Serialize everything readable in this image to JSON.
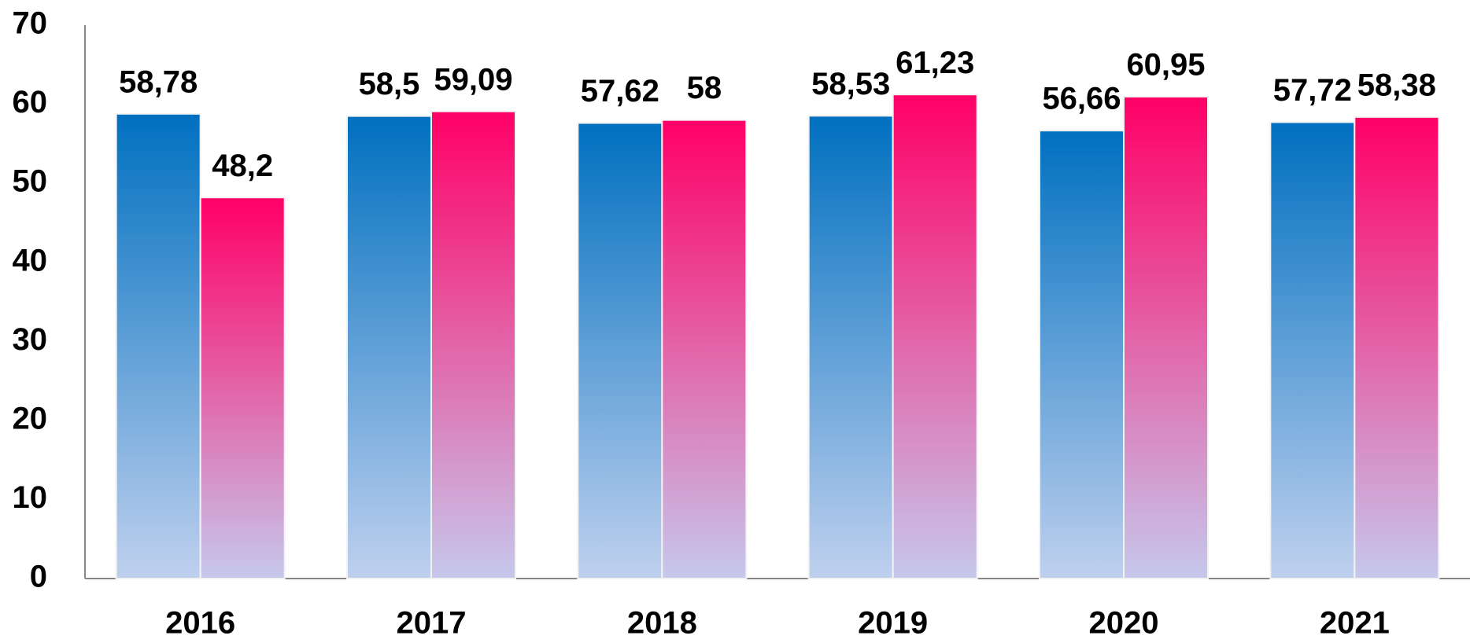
{
  "chart_data": {
    "type": "bar",
    "categories": [
      "2016",
      "2017",
      "2018",
      "2019",
      "2020",
      "2021"
    ],
    "series": [
      {
        "color": "#0070c0",
        "values": [
          58.78,
          58.5,
          57.62,
          58.53,
          56.66,
          57.72
        ],
        "value_labels": [
          "58,78",
          "58,5",
          "57,62",
          "58,53",
          "56,66",
          "57,72"
        ]
      },
      {
        "color": "#ff0066",
        "values": [
          48.2,
          59.09,
          58,
          61.23,
          60.95,
          58.38
        ],
        "value_labels": [
          "48,2",
          "59,09",
          "58",
          "61,23",
          "60,95",
          "58,38"
        ]
      }
    ],
    "ylim": [
      0,
      70
    ],
    "yticks": [
      0,
      10,
      20,
      30,
      40,
      50,
      60,
      70
    ],
    "grid": false
  }
}
